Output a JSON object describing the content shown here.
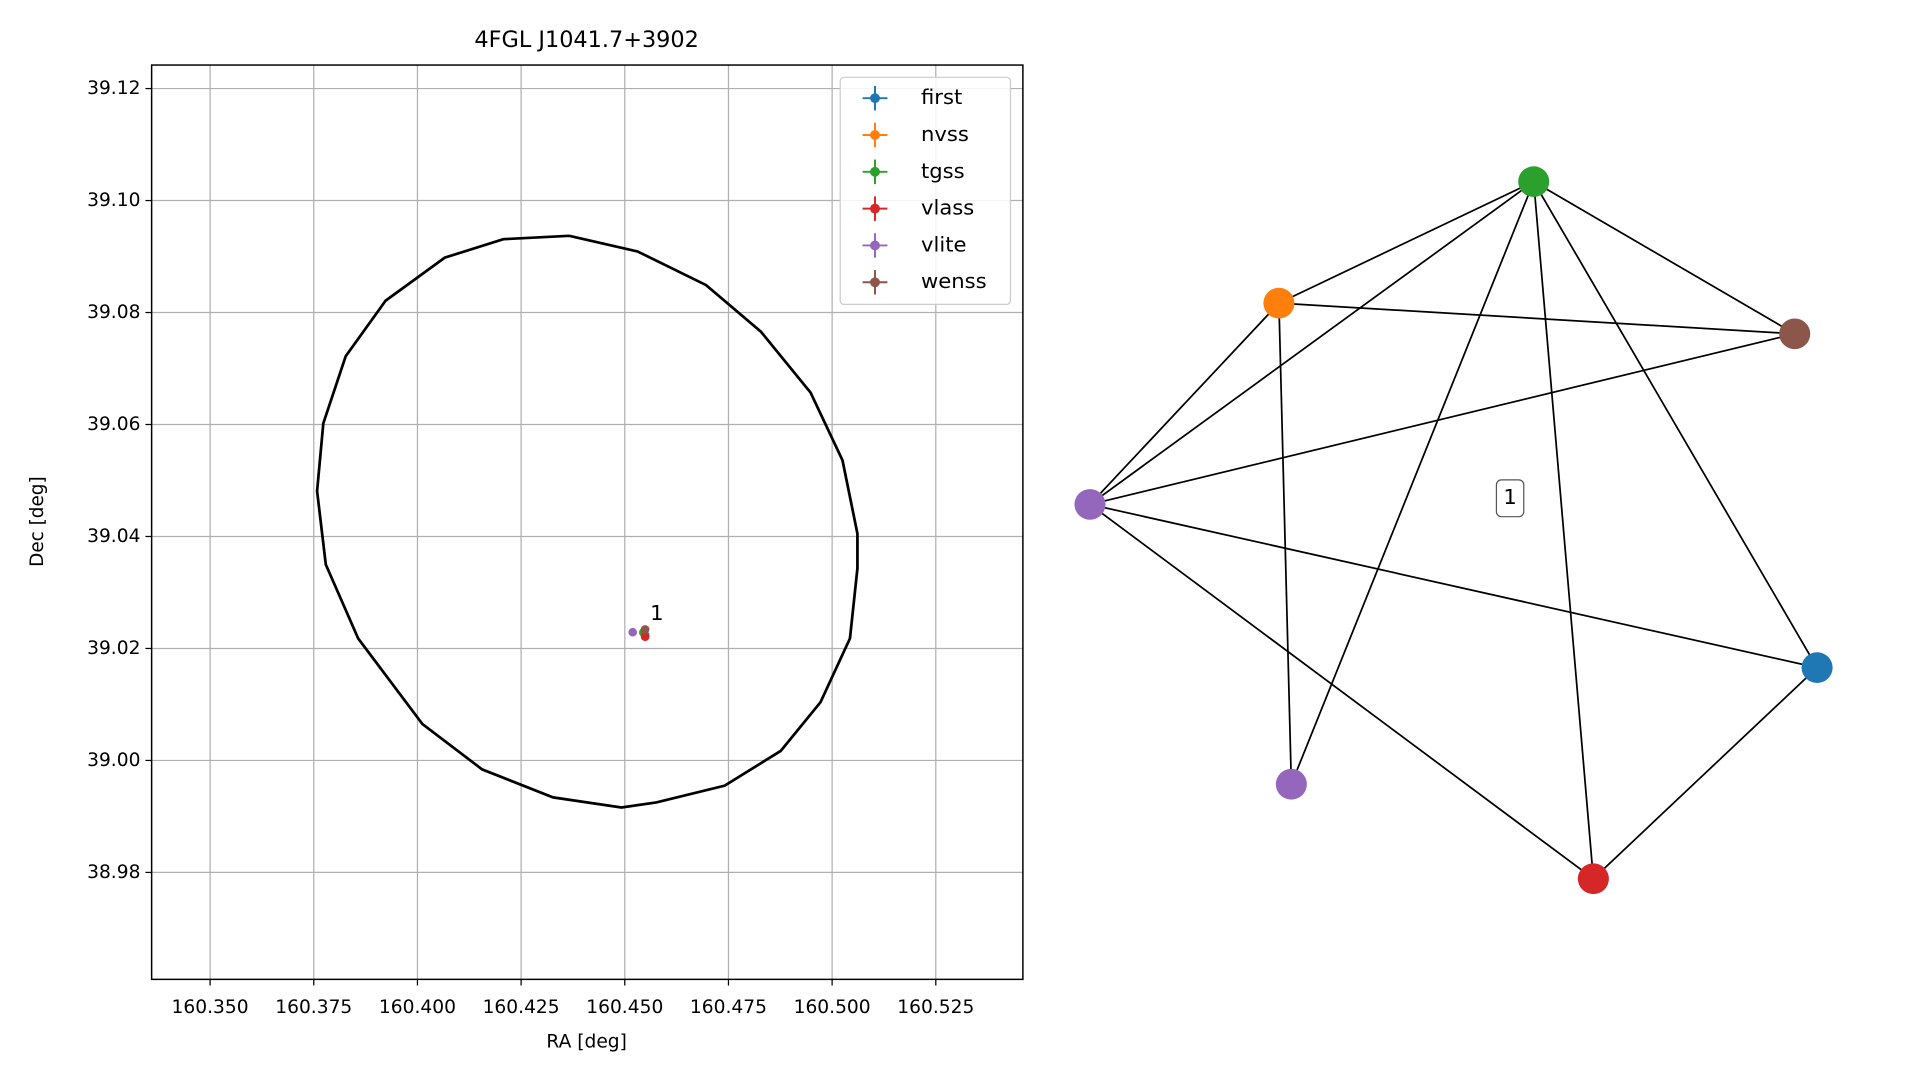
{
  "chart_data": [
    {
      "type": "scatter",
      "title": "4FGL J1041.7+3902",
      "x_label": "RA [deg]",
      "y_label": "Dec [deg]",
      "xlim": [
        160.3359,
        160.546
      ],
      "ylim": [
        38.9609,
        39.1242
      ],
      "xticks": [
        {
          "value": 160.35,
          "label": "160.350"
        },
        {
          "value": 160.375,
          "label": "160.375"
        },
        {
          "value": 160.4,
          "label": "160.400"
        },
        {
          "value": 160.425,
          "label": "160.425"
        },
        {
          "value": 160.45,
          "label": "160.450"
        },
        {
          "value": 160.475,
          "label": "160.475"
        },
        {
          "value": 160.5,
          "label": "160.500"
        },
        {
          "value": 160.525,
          "label": "160.525"
        }
      ],
      "yticks": [
        38.98,
        {
          "value": 39.0,
          "label": "39.00"
        },
        39.02,
        39.04,
        39.06,
        39.08,
        {
          "value": 39.1,
          "label": "39.10"
        },
        39.12
      ],
      "grid": true,
      "legend": "upper right",
      "series": [
        {
          "name": "first",
          "color": "#1f77b4",
          "x": [
            160.4549
          ],
          "y": [
            39.0224
          ],
          "xerr": [
            0.0003
          ],
          "yerr": [
            0.0002
          ]
        },
        {
          "name": "nvss",
          "color": "#ff7f0e",
          "x": [
            160.4545
          ],
          "y": [
            39.0228
          ],
          "xerr": [
            0.0003
          ],
          "yerr": [
            0.0002
          ]
        },
        {
          "name": "tgss",
          "color": "#2ca02c",
          "x": [
            160.4545
          ],
          "y": [
            39.0229
          ],
          "xerr": [
            0.0003
          ],
          "yerr": [
            0.0002
          ]
        },
        {
          "name": "vlass",
          "color": "#d62728",
          "x": [
            160.4549
          ],
          "y": [
            39.0221
          ],
          "xerr": [
            0.0003
          ],
          "yerr": [
            0.0002
          ]
        },
        {
          "name": "vlite",
          "color": "#9467bd",
          "x": [
            160.4519
          ],
          "y": [
            39.0229
          ],
          "xerr": [
            0.0003
          ],
          "yerr": [
            0.0002
          ]
        },
        {
          "name": "wenss",
          "color": "#8c564b",
          "x": [
            160.4549
          ],
          "y": [
            39.0234
          ],
          "xerr": [
            0.0003
          ],
          "yerr": [
            0.0002
          ]
        }
      ],
      "annotations": [
        {
          "text": "1"
        }
      ],
      "ellipse": {
        "color": "#000000",
        "x": [
          160.4366,
          160.4531,
          160.4696,
          160.4828,
          160.4948,
          160.5025,
          160.5061,
          160.5061,
          160.5043,
          160.4972,
          160.4876,
          160.4741,
          160.4576,
          160.4492,
          160.4327,
          160.4156,
          160.4012,
          160.3857,
          160.3779,
          160.3758,
          160.3773,
          160.3827,
          160.3923,
          160.4066,
          160.4207,
          160.4366
        ],
        "y": [
          39.0937,
          39.0909,
          39.0849,
          39.0766,
          39.0657,
          39.0536,
          39.0405,
          39.0343,
          39.0218,
          39.0104,
          39.0017,
          38.9955,
          38.9925,
          38.9916,
          38.9934,
          38.9984,
          39.0065,
          39.0218,
          39.035,
          39.0481,
          39.0602,
          39.0722,
          39.0821,
          39.0898,
          39.0931,
          39.0937
        ]
      }
    },
    {
      "type": "network",
      "label": "1",
      "nodes": [
        {
          "color": "#9467bd"
        },
        {
          "color": "#ff7f0e"
        },
        {
          "color": "#2ca02c"
        },
        {
          "color": "#8c564b"
        },
        {
          "color": "#1f77b4"
        },
        {
          "color": "#d62728"
        },
        {
          "color": "#9467bd"
        }
      ],
      "edges": [
        [
          0,
          1
        ],
        [
          0,
          2
        ],
        [
          0,
          3
        ],
        [
          0,
          4
        ],
        [
          0,
          5
        ],
        [
          1,
          3
        ],
        [
          1,
          6
        ],
        [
          2,
          1
        ],
        [
          2,
          3
        ],
        [
          2,
          6
        ],
        [
          2,
          5
        ],
        [
          2,
          4
        ],
        [
          4,
          5
        ]
      ]
    }
  ]
}
